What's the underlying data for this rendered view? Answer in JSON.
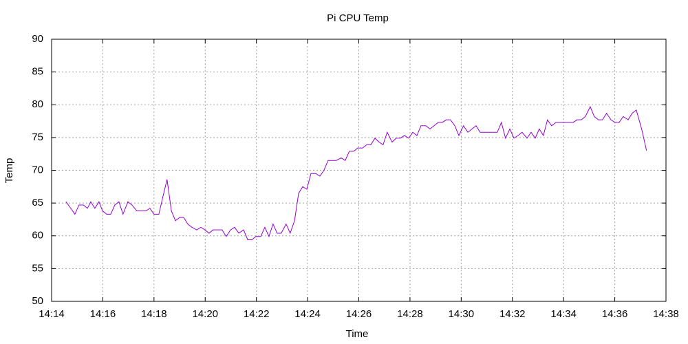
{
  "chart_data": {
    "type": "line",
    "title": "Pi CPU Temp",
    "x_label": "Time",
    "y_label": "Temp",
    "grid": true,
    "xlim": [
      854,
      878
    ],
    "xticks": [
      {
        "value": 854,
        "label": "14:14"
      },
      {
        "value": 856,
        "label": "14:16"
      },
      {
        "value": 858,
        "label": "14:18"
      },
      {
        "value": 860,
        "label": "14:20"
      },
      {
        "value": 862,
        "label": "14:22"
      },
      {
        "value": 864,
        "label": "14:24"
      },
      {
        "value": 866,
        "label": "14:26"
      },
      {
        "value": 868,
        "label": "14:28"
      },
      {
        "value": 870,
        "label": "14:30"
      },
      {
        "value": 872,
        "label": "14:32"
      },
      {
        "value": 874,
        "label": "14:34"
      },
      {
        "value": 876,
        "label": "14:36"
      },
      {
        "value": 878,
        "label": "14:38"
      }
    ],
    "ylim": [
      50,
      90
    ],
    "yticks": [
      50,
      55,
      60,
      65,
      70,
      75,
      80,
      85,
      90
    ],
    "x": [
      854.56,
      854.75,
      854.91,
      855.07,
      855.24,
      855.4,
      855.53,
      855.69,
      855.85,
      855.99,
      856.15,
      856.31,
      856.47,
      856.63,
      856.79,
      856.98,
      857.14,
      857.33,
      857.49,
      857.68,
      857.84,
      858.0,
      858.19,
      858.35,
      858.51,
      858.68,
      858.84,
      859.0,
      859.16,
      859.32,
      859.48,
      859.67,
      859.83,
      859.99,
      860.15,
      860.31,
      860.48,
      860.66,
      860.82,
      860.99,
      861.15,
      861.31,
      861.5,
      861.66,
      861.82,
      861.98,
      862.17,
      862.33,
      862.49,
      862.65,
      862.81,
      862.97,
      863.16,
      863.32,
      863.49,
      863.65,
      863.81,
      863.97,
      864.13,
      864.32,
      864.48,
      864.64,
      864.8,
      864.96,
      865.12,
      865.31,
      865.47,
      865.63,
      865.8,
      865.96,
      866.15,
      866.31,
      866.47,
      866.63,
      866.79,
      866.95,
      867.11,
      867.3,
      867.46,
      867.62,
      867.78,
      867.95,
      868.11,
      868.27,
      868.43,
      868.62,
      868.78,
      868.94,
      869.1,
      869.26,
      869.42,
      869.58,
      869.75,
      869.91,
      870.09,
      870.26,
      870.42,
      870.58,
      870.74,
      870.9,
      871.06,
      871.25,
      871.41,
      871.57,
      871.73,
      871.9,
      872.06,
      872.22,
      872.38,
      872.57,
      872.73,
      872.89,
      873.05,
      873.21,
      873.37,
      873.53,
      873.7,
      873.88,
      874.05,
      874.21,
      874.37,
      874.53,
      874.69,
      874.85,
      875.04,
      875.2,
      875.36,
      875.52,
      875.68,
      875.85,
      876.01,
      876.17,
      876.33,
      876.52,
      876.68,
      876.84,
      877.05,
      877.24
    ],
    "series": [
      {
        "name": "Temp",
        "color": "#9400d3",
        "values": [
          65.2,
          64.2,
          63.3,
          64.7,
          64.7,
          64.2,
          65.2,
          64.2,
          65.2,
          63.8,
          63.3,
          63.3,
          64.7,
          65.2,
          63.3,
          65.2,
          64.7,
          63.8,
          63.8,
          63.8,
          64.2,
          63.3,
          63.3,
          66,
          68.6,
          63.8,
          62.3,
          62.8,
          62.8,
          61.8,
          61.3,
          60.9,
          61.3,
          60.9,
          60.4,
          60.9,
          60.9,
          60.9,
          59.9,
          60.9,
          61.3,
          60.4,
          60.9,
          59.4,
          59.4,
          59.9,
          59.9,
          61.3,
          59.9,
          61.8,
          60.4,
          60.4,
          61.8,
          60.4,
          62.3,
          66.5,
          67.5,
          67.1,
          69.5,
          69.5,
          69.1,
          70,
          71.5,
          71.5,
          71.5,
          71.9,
          71.5,
          72.9,
          72.9,
          73.4,
          73.4,
          73.9,
          73.9,
          74.9,
          74.3,
          73.9,
          75.8,
          74.3,
          74.9,
          74.9,
          75.3,
          74.9,
          75.8,
          75.3,
          76.8,
          76.8,
          76.3,
          76.8,
          77.3,
          77.3,
          77.7,
          77.7,
          76.8,
          75.3,
          76.8,
          75.8,
          76.3,
          76.8,
          75.8,
          75.8,
          75.8,
          75.8,
          75.8,
          77.3,
          74.9,
          76.3,
          74.9,
          75.3,
          75.8,
          74.9,
          75.8,
          74.9,
          76.3,
          75.3,
          77.7,
          76.8,
          77.3,
          77.3,
          77.3,
          77.3,
          77.3,
          77.7,
          77.7,
          78.2,
          79.7,
          78.2,
          77.7,
          77.7,
          78.7,
          77.7,
          77.3,
          77.3,
          78.2,
          77.7,
          78.7,
          79.2,
          76.3,
          73
        ]
      }
    ]
  }
}
